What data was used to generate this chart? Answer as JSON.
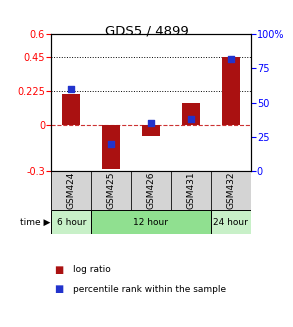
{
  "title": "GDS5 / 4899",
  "samples": [
    "GSM424",
    "GSM425",
    "GSM426",
    "GSM431",
    "GSM432"
  ],
  "log_ratios": [
    0.205,
    -0.285,
    -0.07,
    0.15,
    0.45
  ],
  "percentile_ranks": [
    60,
    20,
    35,
    38,
    82
  ],
  "ylim_left": [
    -0.3,
    0.6
  ],
  "ylim_right": [
    0,
    100
  ],
  "left_ticks": [
    -0.3,
    0,
    0.225,
    0.45,
    0.6
  ],
  "right_ticks": [
    0,
    25,
    50,
    75,
    100
  ],
  "left_tick_labels": [
    "-0.3",
    "0",
    "0.225",
    "0.45",
    "0.6"
  ],
  "right_tick_labels": [
    "0",
    "25",
    "50",
    "75",
    "100%"
  ],
  "hlines": [
    0.225,
    0.45
  ],
  "time_groups": [
    {
      "label": "6 hour",
      "samples": [
        "GSM424"
      ],
      "color": "#c8f0c8"
    },
    {
      "label": "12 hour",
      "samples": [
        "GSM425",
        "GSM426",
        "GSM431"
      ],
      "color": "#90e090"
    },
    {
      "label": "24 hour",
      "samples": [
        "GSM432"
      ],
      "color": "#c8f0c8"
    }
  ],
  "bar_color": "#aa1111",
  "dot_color": "#2233cc",
  "bar_width": 0.45,
  "dot_size": 22,
  "zero_line_color": "#cc3333",
  "hline_color": "#000000",
  "bg_color": "#ffffff",
  "title_fontsize": 9.5,
  "tick_fontsize": 7,
  "label_fontsize": 6.5,
  "legend_fontsize": 6.5,
  "sample_bg": "#d4d4d4"
}
